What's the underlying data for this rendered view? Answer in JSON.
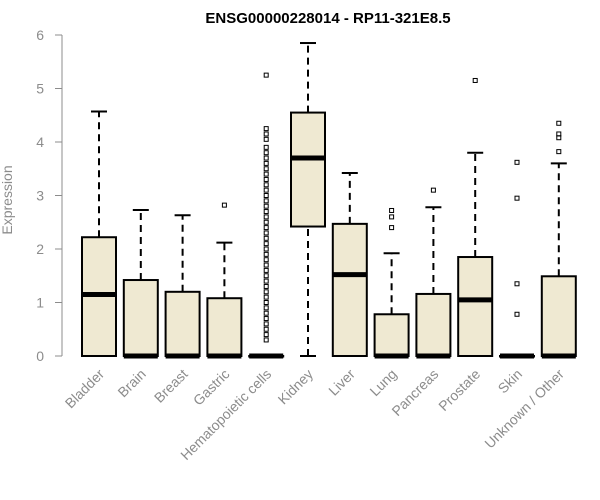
{
  "chart_data": {
    "type": "boxplot",
    "title": "ENSG00000228014 - RP11-321E8.5",
    "ylabel": "Expression",
    "xlabel": "",
    "ylim": [
      0,
      6
    ],
    "yticks": [
      0,
      1,
      2,
      3,
      4,
      5,
      6
    ],
    "grid": false,
    "legend": "none",
    "box_color": "#efe9d2",
    "line_color": "#000000",
    "categories": [
      "Bladder",
      "Brain",
      "Breast",
      "Gastric",
      "Hematopoietic cells",
      "Kidney",
      "Liver",
      "Lung",
      "Pancreas",
      "Prostate",
      "Skin",
      "Unknown / Other"
    ],
    "boxes": [
      {
        "category": "Bladder",
        "min": 0,
        "q1": 0,
        "median": 1.15,
        "q3": 2.22,
        "max": 4.57,
        "outliers": []
      },
      {
        "category": "Brain",
        "min": 0,
        "q1": 0,
        "median": 0,
        "q3": 1.42,
        "max": 2.73,
        "outliers": []
      },
      {
        "category": "Breast",
        "min": 0,
        "q1": 0,
        "median": 0,
        "q3": 1.2,
        "max": 2.63,
        "outliers": []
      },
      {
        "category": "Gastric",
        "min": 0,
        "q1": 0,
        "median": 0,
        "q3": 1.08,
        "max": 2.12,
        "outliers": [
          2.82
        ]
      },
      {
        "category": "Hematopoietic cells",
        "min": 0,
        "q1": 0,
        "median": 0,
        "q3": 0,
        "max": 0,
        "outliers": [
          0.3,
          0.4,
          0.5,
          0.6,
          0.7,
          0.8,
          0.9,
          1.0,
          1.1,
          1.2,
          1.3,
          1.4,
          1.5,
          1.6,
          1.7,
          1.8,
          1.9,
          2.0,
          2.1,
          2.2,
          2.3,
          2.4,
          2.5,
          2.6,
          2.7,
          2.8,
          2.9,
          3.0,
          3.1,
          3.2,
          3.3,
          3.4,
          3.5,
          3.6,
          3.7,
          3.8,
          3.9,
          4.05,
          4.15,
          4.25,
          5.25
        ]
      },
      {
        "category": "Kidney",
        "min": 0,
        "q1": 2.42,
        "median": 3.7,
        "q3": 4.55,
        "max": 5.85,
        "outliers": []
      },
      {
        "category": "Liver",
        "min": 0,
        "q1": 0,
        "median": 1.52,
        "q3": 2.47,
        "max": 3.42,
        "outliers": []
      },
      {
        "category": "Lung",
        "min": 0,
        "q1": 0,
        "median": 0,
        "q3": 0.78,
        "max": 1.92,
        "outliers": [
          2.4,
          2.6,
          2.72
        ]
      },
      {
        "category": "Pancreas",
        "min": 0,
        "q1": 0,
        "median": 0,
        "q3": 1.16,
        "max": 2.78,
        "outliers": [
          3.1
        ]
      },
      {
        "category": "Prostate",
        "min": 0,
        "q1": 0,
        "median": 1.05,
        "q3": 1.85,
        "max": 3.8,
        "outliers": [
          5.15
        ]
      },
      {
        "category": "Skin",
        "min": 0,
        "q1": 0,
        "median": 0,
        "q3": 0,
        "max": 0,
        "outliers": [
          0.78,
          1.35,
          2.95,
          3.62
        ]
      },
      {
        "category": "Unknown / Other",
        "min": 0,
        "q1": 0,
        "median": 0,
        "q3": 1.49,
        "max": 3.6,
        "outliers": [
          3.82,
          4.08,
          4.15,
          4.35
        ]
      }
    ]
  }
}
